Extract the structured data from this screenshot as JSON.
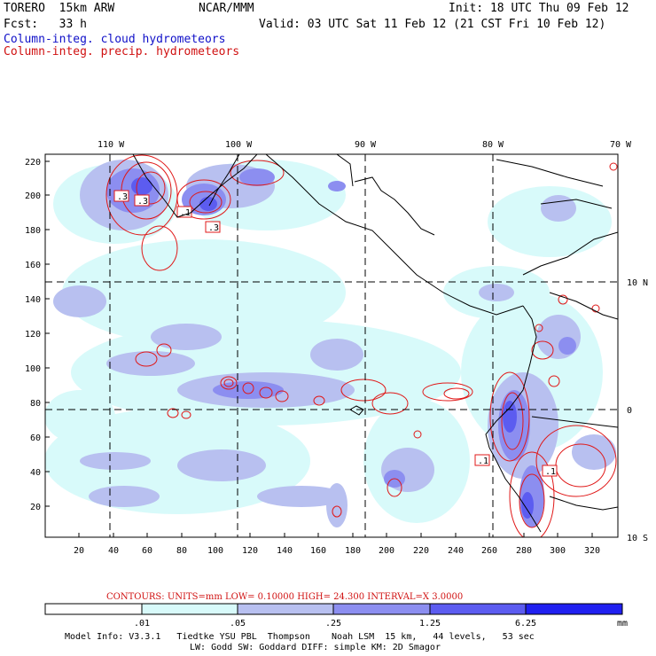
{
  "header": {
    "model": "TORERO  15km ARW",
    "org": "NCAR/MMM",
    "init": "Init: 18 UTC Thu 09 Feb 12",
    "fcst": "Fcst:   33 h",
    "valid": "Valid: 03 UTC Sat 11 Feb 12 (21 CST Fri 10 Feb 12)",
    "field_cloud": "Column-integ. cloud hydrometeors",
    "field_precip": "Column-integ. precip. hydrometeors"
  },
  "colors": {
    "cloud_text": "#1010c8",
    "precip_text": "#d01010",
    "land_border": "#000000"
  },
  "map": {
    "lon_labels": [
      "110 W",
      "100 W",
      "90 W",
      "80 W",
      "70 W"
    ],
    "lat_labels": [
      "10 N",
      "0",
      "10 S"
    ],
    "y_ticks": [
      "220",
      "200",
      "180",
      "160",
      "140",
      "120",
      "100",
      "80",
      "60",
      "40",
      "20"
    ],
    "x_ticks": [
      "20",
      "40",
      "60",
      "80",
      "100",
      "120",
      "140",
      "160",
      "180",
      "200",
      "220",
      "240",
      "260",
      "280",
      "300",
      "320"
    ],
    "contour_labels": [
      ".3",
      ".3",
      ".1",
      ".3",
      ".1",
      ".1"
    ]
  },
  "contours_info": {
    "label": "CONTOURS:  UNITS=mm  LOW= 0.10000      HIGH=  24.300      INTERVAL=X  3.0000"
  },
  "colorbar": {
    "labels": [
      ".01",
      ".05",
      ".25",
      "1.25",
      "6.25"
    ],
    "units": "mm",
    "colors": [
      "#ffffff",
      "#d8fafa",
      "#b8c0f0",
      "#8c8ef0",
      "#5c5cf0",
      "#2020f0"
    ]
  },
  "footer": {
    "line1": "Model Info: V3.3.1   Tiedtke YSU PBL  Thompson    Noah LSM  15 km,   44 levels,   53 sec",
    "line2": "LW: Godd SW: Goddard DIFF: simple KM: 2D Smagor"
  }
}
